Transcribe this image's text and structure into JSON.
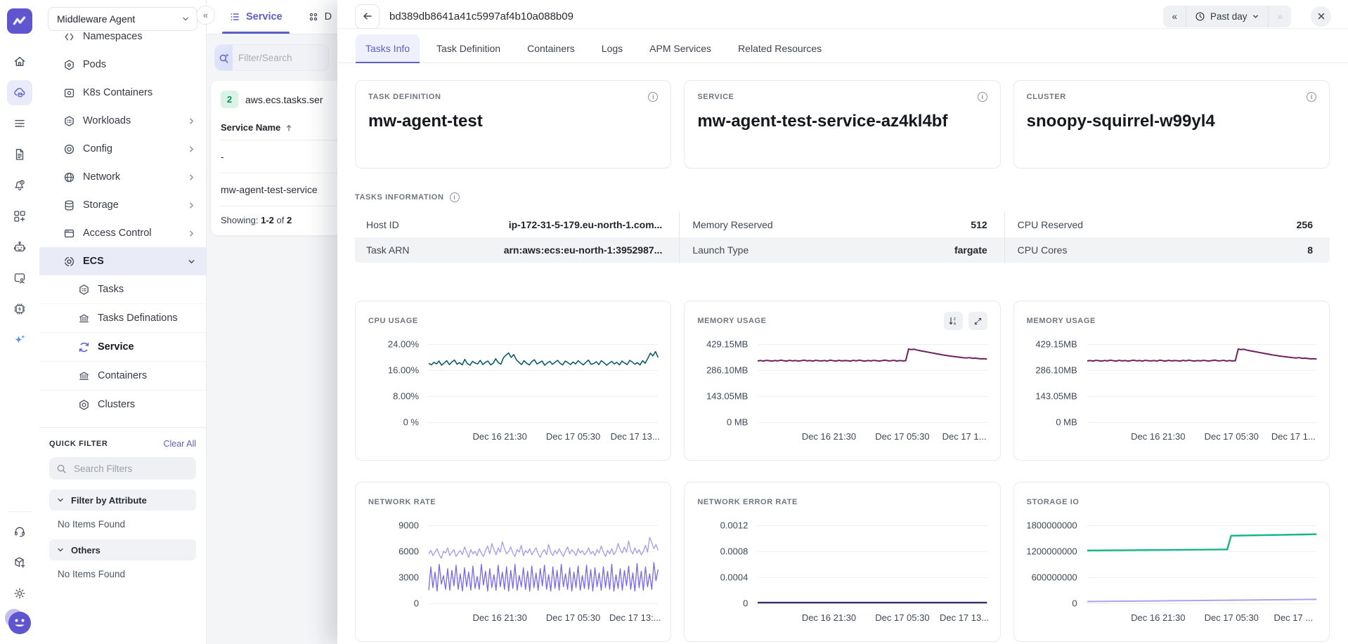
{
  "brand": {
    "accent": "#5f55cf",
    "logo_icon": "mw-zigzag"
  },
  "icon_rail": {
    "top": [
      "home",
      "cloud-infrastructure",
      "logs",
      "reports",
      "alerts",
      "integrations",
      "ai-agent",
      "user-sessions",
      "resources",
      "mw-copilot"
    ],
    "bottom": [
      "support",
      "releases",
      "settings",
      "profile"
    ]
  },
  "workspace": {
    "selector_value": "Middleware Agent"
  },
  "nav": {
    "items": [
      {
        "label": "Namespaces"
      },
      {
        "label": "Pods"
      },
      {
        "label": "K8s Containers"
      },
      {
        "label": "Workloads"
      },
      {
        "label": "Config"
      },
      {
        "label": "Network"
      },
      {
        "label": "Storage"
      },
      {
        "label": "Access Control"
      },
      {
        "label": "ECS"
      }
    ],
    "ecs_children": [
      {
        "label": "Tasks"
      },
      {
        "label": "Tasks Definations"
      },
      {
        "label": "Service"
      },
      {
        "label": "Containers"
      },
      {
        "label": "Clusters"
      }
    ]
  },
  "quick_filter": {
    "title": "QUICK FILTER",
    "clear_all": "Clear All",
    "search_placeholder": "Search Filters",
    "groups": [
      {
        "label": "Filter by Attribute",
        "empty_text": "No Items Found"
      },
      {
        "label": "Others",
        "empty_text": "No Items Found"
      }
    ]
  },
  "list_panel": {
    "tab_service": "Service",
    "tab_dashboard_partial": "D",
    "search_placeholder": "Filter/Search",
    "metric_count": "2",
    "metric_label": "aws.ecs.tasks.ser",
    "column_header": "Service Name",
    "rows": [
      "-",
      "mw-agent-test-service"
    ],
    "showing_label": "Showing:",
    "showing_range": "1-2",
    "showing_of": "of",
    "showing_total": "2"
  },
  "detail": {
    "title": "bd389db8641a41c5997af4b10a088b09",
    "time_range": "Past day",
    "prev_label": "«",
    "next_label": "»",
    "tabs": [
      "Tasks Info",
      "Task Definition",
      "Containers",
      "Logs",
      "APM Services",
      "Related Resources"
    ],
    "cards": [
      {
        "label": "TASK DEFINITION",
        "value": "mw-agent-test"
      },
      {
        "label": "SERVICE",
        "value": "mw-agent-test-service-az4kl4bf"
      },
      {
        "label": "CLUSTER",
        "value": "snoopy-squirrel-w99yl4"
      }
    ],
    "info_title": "TASKS INFORMATION",
    "info_rows": [
      [
        {
          "label": "Host ID",
          "value": "ip-172-31-5-179.eu-north-1.com..."
        },
        {
          "label": "Memory Reserved",
          "value": "512"
        },
        {
          "label": "CPU Reserved",
          "value": "256"
        }
      ],
      [
        {
          "label": "Task ARN",
          "value": "arn:aws:ecs:eu-north-1:3952987..."
        },
        {
          "label": "Launch Type",
          "value": "fargate"
        },
        {
          "label": "CPU Cores",
          "value": "8"
        }
      ]
    ]
  },
  "chart_data": [
    {
      "id": "cpu",
      "type": "line",
      "title": "CPU USAGE",
      "ylabel": "percent",
      "ymax": 24,
      "ylim": [
        0,
        24
      ],
      "grid": true,
      "legend": "none",
      "yticks": [
        "24.00%",
        "16.00%",
        "8.00%",
        "0 %"
      ],
      "xticks": [
        {
          "label": "Dec 16 21:30",
          "pos": 31
        },
        {
          "label": "Dec 17 05:30",
          "pos": 63
        },
        {
          "label": "Dec 17 13...",
          "pos": 90
        }
      ],
      "series": [
        {
          "name": "cpu-usage-percent",
          "color": "#0e5e66",
          "width": 1.6,
          "values": [
            18.1,
            17.6,
            18.4,
            17.9,
            18.8,
            17.5,
            18.2,
            18.9,
            17.7,
            18.5,
            19.1,
            17.8,
            18.3,
            17.6,
            19.3,
            18.0,
            17.5,
            18.7,
            18.2,
            17.9,
            19.0,
            17.7,
            18.4,
            18.8,
            17.6,
            18.1,
            19.5,
            18.3,
            17.8,
            19.8,
            20.6,
            21.3,
            19.9,
            20.8,
            19.2,
            18.4,
            17.7,
            18.9,
            18.1,
            17.6,
            18.6,
            19.2,
            17.9,
            18.3,
            18.8,
            17.5,
            18.2,
            18.7,
            17.8,
            18.4,
            19.0,
            18.1,
            17.6,
            18.8,
            18.3,
            17.7,
            18.5,
            17.9,
            18.9,
            18.2,
            17.6,
            18.4,
            19.1,
            17.8,
            18.0,
            18.6,
            17.7,
            18.9,
            18.3,
            17.5,
            18.1,
            18.7,
            17.9,
            18.4,
            17.6,
            18.8,
            18.2,
            17.7,
            19.0,
            18.5,
            17.8,
            18.3,
            17.6,
            18.9,
            18.1,
            19.6,
            21.2,
            20.4,
            21.7,
            19.9
          ]
        }
      ]
    },
    {
      "id": "mem1",
      "type": "line",
      "title": "MEMORY USAGE",
      "ylabel": "MB",
      "ymax": 429.15,
      "ylim": [
        0,
        429.15
      ],
      "grid": true,
      "legend": "none",
      "has_toolbar": true,
      "yticks": [
        "429.15MB",
        "286.10MB",
        "143.05MB",
        "0 MB"
      ],
      "xticks": [
        {
          "label": "Dec 16 21:30",
          "pos": 31
        },
        {
          "label": "Dec 17 05:30",
          "pos": 63
        },
        {
          "label": "Dec 17 1...",
          "pos": 90
        }
      ],
      "series": [
        {
          "name": "memory-usage-mb",
          "color": "#6e1e5f",
          "width": 2,
          "values": [
            337,
            339,
            336,
            340,
            338,
            336,
            339,
            337,
            341,
            338,
            336,
            340,
            337,
            339,
            336,
            338,
            341,
            337,
            339,
            336,
            340,
            338,
            337,
            339,
            336,
            341,
            338,
            336,
            340,
            337,
            339,
            338,
            336,
            340,
            337,
            341,
            338,
            336,
            339,
            337,
            340,
            338,
            336,
            339,
            341,
            337,
            338,
            340,
            336,
            339,
            337,
            338,
            402,
            399,
            401,
            396,
            393,
            390,
            387,
            384,
            381,
            378,
            375,
            372,
            369,
            367,
            364,
            362,
            360,
            358,
            356,
            354,
            353,
            355,
            351,
            352,
            350,
            348,
            349,
            347
          ]
        }
      ]
    },
    {
      "id": "mem2",
      "type": "line",
      "title": "MEMORY USAGE",
      "ylabel": "MB",
      "ymax": 429.15,
      "ylim": [
        0,
        429.15
      ],
      "grid": true,
      "legend": "none",
      "yticks": [
        "429.15MB",
        "286.10MB",
        "143.05MB",
        "0 MB"
      ],
      "xticks": [
        {
          "label": "Dec 16 21:30",
          "pos": 31
        },
        {
          "label": "Dec 17 05:30",
          "pos": 63
        },
        {
          "label": "Dec 17 1...",
          "pos": 90
        }
      ],
      "series": [
        {
          "name": "memory-usage-mb",
          "color": "#6e1e5f",
          "width": 2,
          "values": [
            337,
            339,
            336,
            340,
            338,
            336,
            339,
            337,
            341,
            338,
            336,
            340,
            337,
            339,
            336,
            338,
            341,
            337,
            339,
            336,
            340,
            338,
            337,
            339,
            336,
            341,
            338,
            336,
            340,
            337,
            339,
            338,
            336,
            340,
            337,
            341,
            338,
            336,
            339,
            337,
            340,
            338,
            336,
            339,
            341,
            337,
            338,
            340,
            336,
            339,
            337,
            338,
            402,
            399,
            401,
            396,
            393,
            390,
            387,
            384,
            381,
            378,
            375,
            372,
            369,
            367,
            364,
            362,
            360,
            358,
            356,
            354,
            353,
            355,
            351,
            352,
            350,
            348,
            349,
            347
          ]
        }
      ]
    },
    {
      "id": "net",
      "type": "line",
      "title": "NETWORK RATE",
      "ylabel": "",
      "ymax": 9000,
      "ylim": [
        0,
        9000
      ],
      "grid": true,
      "legend": "none",
      "yticks": [
        "9000",
        "6000",
        "3000",
        "0"
      ],
      "xticks": [
        {
          "label": "Dec 16 21:30",
          "pos": 31
        },
        {
          "label": "Dec 17 05:30",
          "pos": 63
        },
        {
          "label": "Dec 17 13:...",
          "pos": 90
        }
      ],
      "series": [
        {
          "name": "network-rate-rx",
          "color": "#a29ceb",
          "width": 1.3,
          "values": [
            5700,
            6100,
            5500,
            5900,
            6300,
            5600,
            5200,
            6000,
            5800,
            6400,
            5500,
            5900,
            6200,
            5400,
            5800,
            6100,
            5600,
            6500,
            5900,
            5300,
            6200,
            5700,
            6000,
            5500,
            6300,
            5800,
            5400,
            6100,
            6600,
            5700,
            6900,
            6200,
            5600,
            6400,
            5900,
            7100,
            6300,
            5700,
            6000,
            6500,
            5800,
            5400,
            6200,
            5900,
            6700,
            5500,
            6100,
            5800,
            6300,
            5600,
            6000,
            6400,
            5700,
            5300,
            5900,
            6200,
            5600,
            6800,
            5900,
            5500,
            6100,
            5700,
            6300,
            5800,
            5400,
            6000,
            6500,
            5700,
            6200,
            5900,
            5500,
            6300,
            5800,
            6100,
            5600,
            5900,
            6400,
            5700,
            6000,
            5500,
            6200,
            5800,
            6600,
            5900,
            5400,
            6100,
            5700,
            6300,
            5600,
            6000,
            6900,
            6200,
            5800,
            6500,
            5900,
            7200,
            6100,
            5700,
            6400,
            5800,
            6200,
            5600,
            6000,
            6700,
            5900,
            7600,
            7000,
            6300,
            6800,
            6100
          ]
        },
        {
          "name": "network-rate-tx",
          "color": "#7668e8",
          "width": 1.3,
          "values": [
            1500,
            4200,
            1800,
            3600,
            1400,
            4500,
            2200,
            3200,
            1600,
            4000,
            1500,
            3800,
            2000,
            4400,
            1600,
            3400,
            1400,
            4100,
            1900,
            3600,
            1500,
            4300,
            1700,
            3100,
            1600,
            4500,
            2100,
            3700,
            1400,
            4000,
            1800,
            3300,
            1500,
            4400,
            1900,
            3600,
            1600,
            4200,
            1400,
            3800,
            1700,
            4500,
            1500,
            3200,
            1900,
            4100,
            1600,
            3700,
            1400,
            4300,
            1800,
            3500,
            1500,
            4000,
            2000,
            4400,
            1600,
            3300,
            1400,
            4200,
            1700,
            3800,
            1500,
            4500,
            1900,
            3400,
            1600,
            4100,
            1400,
            3600,
            1800,
            4300,
            1500,
            3200,
            1700,
            4400,
            1600,
            3900,
            1400,
            4100,
            1900,
            3500,
            1500,
            4200,
            1800,
            3700,
            1600,
            4500,
            1400,
            3300,
            1700,
            4000,
            1500,
            3800,
            2000,
            4300,
            1600,
            3500,
            1400,
            4600,
            1800,
            3700,
            1500,
            4200,
            1900,
            3400,
            1600,
            4700,
            2600,
            3900
          ]
        }
      ]
    },
    {
      "id": "err",
      "type": "line",
      "title": "NETWORK ERROR RATE",
      "ylabel": "",
      "ymax": 0.0012,
      "ylim": [
        0,
        0.0012
      ],
      "grid": true,
      "legend": "none",
      "yticks": [
        "0.0012",
        "0.0008",
        "0.0004",
        "0"
      ],
      "xticks": [
        {
          "label": "Dec 16 21:30",
          "pos": 31
        },
        {
          "label": "Dec 17 05:30",
          "pos": 63
        },
        {
          "label": "Dec 17 13...",
          "pos": 90
        }
      ],
      "series": [
        {
          "name": "network-error-rate",
          "color": "#39306e",
          "width": 2.4,
          "values": [
            1e-05,
            1e-05
          ]
        }
      ]
    },
    {
      "id": "storage",
      "type": "line",
      "title": "STORAGE IO",
      "ylabel": "",
      "ymax": 1800000000,
      "ylim": [
        0,
        1800000000
      ],
      "grid": true,
      "legend": "none",
      "yticks": [
        "1800000000",
        "1200000000",
        "600000000",
        "0"
      ],
      "xticks": [
        {
          "label": "Dec 16 21:30",
          "pos": 31
        },
        {
          "label": "Dec 17 05:30",
          "pos": 63
        },
        {
          "label": "Dec 17 ...",
          "pos": 90
        }
      ],
      "series": [
        {
          "name": "storage-io-read",
          "color": "#13b586",
          "width": 2.4,
          "values": [
            1218000000,
            1219000000,
            1220000000,
            1220000000,
            1221000000,
            1222000000,
            1222000000,
            1223000000,
            1224000000,
            1224000000,
            1225000000,
            1226000000,
            1226000000,
            1227000000,
            1228000000,
            1228000000,
            1229000000,
            1230000000,
            1230000000,
            1231000000,
            1232000000,
            1232000000,
            1233000000,
            1234000000,
            1234000000,
            1235000000,
            1236000000,
            1236000000,
            1237000000,
            1238000000,
            1238000000,
            1239000000,
            1240000000,
            1240000000,
            1241000000,
            1242000000,
            1242000000,
            1560000000,
            1562000000,
            1563000000,
            1565000000,
            1566000000,
            1568000000,
            1569000000,
            1571000000,
            1572000000,
            1574000000,
            1575000000,
            1577000000,
            1578000000,
            1580000000,
            1581000000,
            1583000000,
            1584000000,
            1586000000,
            1587000000,
            1589000000,
            1590000000,
            1592000000,
            1594000000
          ]
        },
        {
          "name": "storage-io-write",
          "color": "#a9a4ec",
          "width": 2,
          "values": [
            40000000,
            48000000,
            56000000,
            64000000,
            72000000,
            82000000,
            92000000
          ]
        }
      ]
    }
  ]
}
